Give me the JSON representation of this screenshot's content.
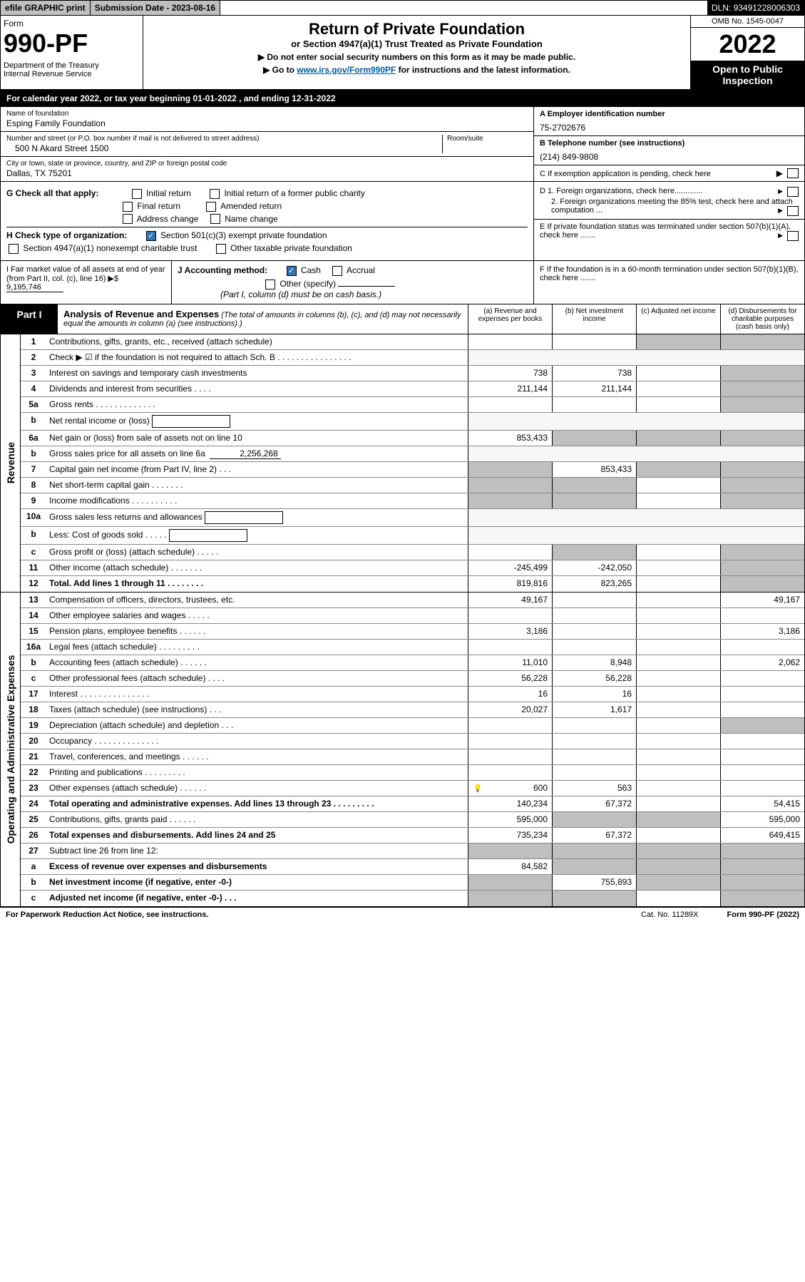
{
  "topbar": {
    "efile": "efile GRAPHIC print",
    "submission": "Submission Date - 2023-08-16",
    "dln": "DLN: 93491228006303"
  },
  "header": {
    "form_label": "Form",
    "form_no": "990-PF",
    "dept": "Department of the Treasury\nInternal Revenue Service",
    "title": "Return of Private Foundation",
    "subtitle": "or Section 4947(a)(1) Trust Treated as Private Foundation",
    "note1": "▶ Do not enter social security numbers on this form as it may be made public.",
    "note2_pre": "▶ Go to ",
    "note2_link": "www.irs.gov/Form990PF",
    "note2_post": " for instructions and the latest information.",
    "omb": "OMB No. 1545-0047",
    "year": "2022",
    "open": "Open to Public Inspection"
  },
  "calyear": "For calendar year 2022, or tax year beginning 01-01-2022          , and ending 12-31-2022",
  "info": {
    "name_label": "Name of foundation",
    "name": "Esping Family Foundation",
    "addr_label": "Number and street (or P.O. box number if mail is not delivered to street address)",
    "addr": "500 N Akard Street 1500",
    "room_label": "Room/suite",
    "city_label": "City or town, state or province, country, and ZIP or foreign postal code",
    "city": "Dallas, TX  75201",
    "ein_label": "A Employer identification number",
    "ein": "75-2702676",
    "phone_label": "B Telephone number (see instructions)",
    "phone": "(214) 849-9808",
    "c": "C If exemption application is pending, check here"
  },
  "checks": {
    "g_label": "G Check all that apply:",
    "g_opts": [
      "Initial return",
      "Initial return of a former public charity",
      "Final return",
      "Amended return",
      "Address change",
      "Name change"
    ],
    "h_label": "H Check type of organization:",
    "h_opt1": "Section 501(c)(3) exempt private foundation",
    "h_opt2": "Section 4947(a)(1) nonexempt charitable trust",
    "h_opt3": "Other taxable private foundation",
    "d1": "D 1. Foreign organizations, check here.............",
    "d2": "2. Foreign organizations meeting the 85% test, check here and attach computation ...",
    "e": "E  If private foundation status was terminated under section 507(b)(1)(A), check here .......",
    "f": "F  If the foundation is in a 60-month termination under section 507(b)(1)(B), check here ......."
  },
  "hij": {
    "i_label": "I Fair market value of all assets at end of year (from Part II, col. (c), line 16)",
    "i_val": "9,195,746",
    "j_label": "J Accounting method:",
    "j_cash": "Cash",
    "j_accrual": "Accrual",
    "j_other": "Other (specify)",
    "j_note": "(Part I, column (d) must be on cash basis.)"
  },
  "part1": {
    "label": "Part I",
    "title": "Analysis of Revenue and Expenses",
    "title_note": " (The total of amounts in columns (b), (c), and (d) may not necessarily equal the amounts in column (a) (see instructions).)",
    "cols": {
      "a": "(a)  Revenue and expenses per books",
      "b": "(b)  Net investment income",
      "c": "(c)  Adjusted net income",
      "d": "(d)  Disbursements for charitable purposes (cash basis only)"
    }
  },
  "sections": {
    "revenue": "Revenue",
    "expenses": "Operating and Administrative Expenses"
  },
  "lines": [
    {
      "no": "1",
      "desc": "Contributions, gifts, grants, etc., received (attach schedule)",
      "a": "",
      "b": "",
      "c": "grey",
      "d": "grey"
    },
    {
      "no": "2",
      "desc": "Check ▶ ☑ if the foundation is not required to attach Sch. B   . . . . . . . . . . . . . . . .",
      "nocells": true
    },
    {
      "no": "3",
      "desc": "Interest on savings and temporary cash investments",
      "a": "738",
      "b": "738",
      "c": "",
      "d": "grey"
    },
    {
      "no": "4",
      "desc": "Dividends and interest from securities  . . . .",
      "a": "211,144",
      "b": "211,144",
      "c": "",
      "d": "grey"
    },
    {
      "no": "5a",
      "desc": "Gross rents  . . . . . . . . . . . . .",
      "a": "",
      "b": "",
      "c": "",
      "d": "grey"
    },
    {
      "no": "b",
      "desc": "Net rental income or (loss)",
      "inlinebox": true,
      "nocells": true
    },
    {
      "no": "6a",
      "desc": "Net gain or (loss) from sale of assets not on line 10",
      "a": "853,433",
      "b": "grey",
      "c": "grey",
      "d": "grey"
    },
    {
      "no": "b",
      "desc": "Gross sales price for all assets on line 6a",
      "inlineval": "2,256,268",
      "nocells": true
    },
    {
      "no": "7",
      "desc": "Capital gain net income (from Part IV, line 2)  . . .",
      "a": "grey",
      "b": "853,433",
      "c": "grey",
      "d": "grey"
    },
    {
      "no": "8",
      "desc": "Net short-term capital gain  . . . . . . .",
      "a": "grey",
      "b": "grey",
      "c": "",
      "d": "grey"
    },
    {
      "no": "9",
      "desc": "Income modifications . . . . . . . . . .",
      "a": "grey",
      "b": "grey",
      "c": "",
      "d": "grey"
    },
    {
      "no": "10a",
      "desc": "Gross sales less returns and allowances",
      "inlinebox": true,
      "nocells": true
    },
    {
      "no": "b",
      "desc": "Less: Cost of goods sold   . . . . .",
      "inlinebox": true,
      "nocells": true
    },
    {
      "no": "c",
      "desc": "Gross profit or (loss) (attach schedule)  . . . . .",
      "a": "",
      "b": "grey",
      "c": "",
      "d": "grey"
    },
    {
      "no": "11",
      "desc": "Other income (attach schedule)  . . . . . . .",
      "a": "-245,499",
      "b": "-242,050",
      "c": "",
      "d": "grey"
    },
    {
      "no": "12",
      "desc": "Total. Add lines 1 through 11  . . . . . . . .",
      "bold": true,
      "a": "819,816",
      "b": "823,265",
      "c": "",
      "d": "grey"
    }
  ],
  "explines": [
    {
      "no": "13",
      "desc": "Compensation of officers, directors, trustees, etc.",
      "a": "49,167",
      "b": "",
      "c": "",
      "d": "49,167"
    },
    {
      "no": "14",
      "desc": "Other employee salaries and wages  . . . . .",
      "a": "",
      "b": "",
      "c": "",
      "d": ""
    },
    {
      "no": "15",
      "desc": "Pension plans, employee benefits  . . . . . .",
      "a": "3,186",
      "b": "",
      "c": "",
      "d": "3,186"
    },
    {
      "no": "16a",
      "desc": "Legal fees (attach schedule) . . . . . . . . .",
      "a": "",
      "b": "",
      "c": "",
      "d": ""
    },
    {
      "no": "b",
      "desc": "Accounting fees (attach schedule)  . . . . . .",
      "a": "11,010",
      "b": "8,948",
      "c": "",
      "d": "2,062"
    },
    {
      "no": "c",
      "desc": "Other professional fees (attach schedule)  . . . .",
      "a": "56,228",
      "b": "56,228",
      "c": "",
      "d": ""
    },
    {
      "no": "17",
      "desc": "Interest . . . . . . . . . . . . . . .",
      "a": "16",
      "b": "16",
      "c": "",
      "d": ""
    },
    {
      "no": "18",
      "desc": "Taxes (attach schedule) (see instructions)   . . .",
      "a": "20,027",
      "b": "1,617",
      "c": "",
      "d": ""
    },
    {
      "no": "19",
      "desc": "Depreciation (attach schedule) and depletion  . . .",
      "a": "",
      "b": "",
      "c": "",
      "d": "grey"
    },
    {
      "no": "20",
      "desc": "Occupancy . . . . . . . . . . . . . .",
      "a": "",
      "b": "",
      "c": "",
      "d": ""
    },
    {
      "no": "21",
      "desc": "Travel, conferences, and meetings . . . . . .",
      "a": "",
      "b": "",
      "c": "",
      "d": ""
    },
    {
      "no": "22",
      "desc": "Printing and publications . . . . . . . . .",
      "a": "",
      "b": "",
      "c": "",
      "d": ""
    },
    {
      "no": "23",
      "desc": "Other expenses (attach schedule)  . . . . . .",
      "a": "600",
      "b": "563",
      "c": "",
      "d": "",
      "bulb": true
    },
    {
      "no": "24",
      "desc": "Total operating and administrative expenses. Add lines 13 through 23  . . . . . . . . .",
      "bold": true,
      "a": "140,234",
      "b": "67,372",
      "c": "",
      "d": "54,415"
    },
    {
      "no": "25",
      "desc": "Contributions, gifts, grants paid   . . . . . .",
      "a": "595,000",
      "b": "grey",
      "c": "grey",
      "d": "595,000"
    },
    {
      "no": "26",
      "desc": "Total expenses and disbursements. Add lines 24 and 25",
      "bold": true,
      "a": "735,234",
      "b": "67,372",
      "c": "",
      "d": "649,415"
    },
    {
      "no": "27",
      "desc": "Subtract line 26 from line 12:",
      "a": "grey",
      "b": "grey",
      "c": "grey",
      "d": "grey"
    },
    {
      "no": "a",
      "desc": "Excess of revenue over expenses and disbursements",
      "bold": true,
      "a": "84,582",
      "b": "grey",
      "c": "grey",
      "d": "grey"
    },
    {
      "no": "b",
      "desc": "Net investment income (if negative, enter -0-)",
      "bold": true,
      "a": "grey",
      "b": "755,893",
      "c": "grey",
      "d": "grey"
    },
    {
      "no": "c",
      "desc": "Adjusted net income (if negative, enter -0-)  . . .",
      "bold": true,
      "a": "grey",
      "b": "grey",
      "c": "",
      "d": "grey"
    }
  ],
  "footer": {
    "paperwork": "For Paperwork Reduction Act Notice, see instructions.",
    "cat": "Cat. No. 11289X",
    "form": "Form 990-PF (2022)"
  }
}
